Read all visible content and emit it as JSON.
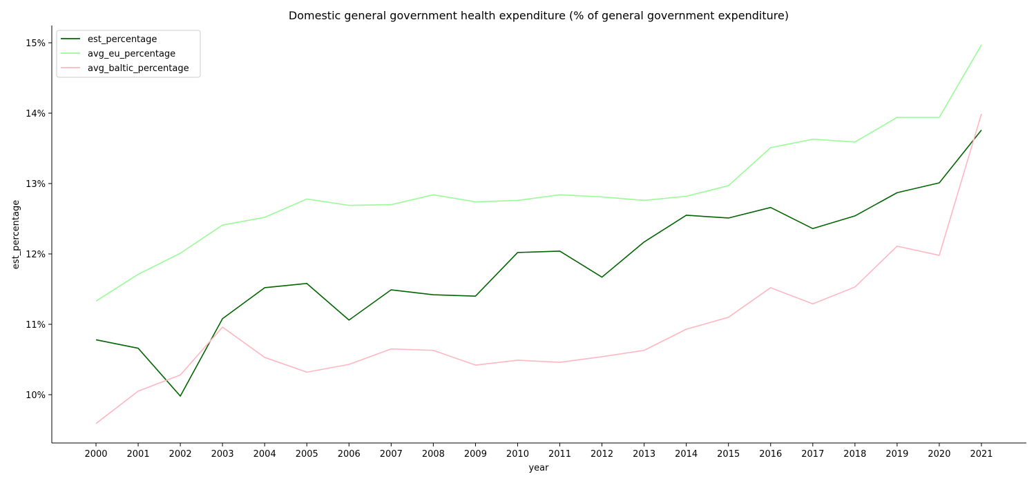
{
  "chart_data": {
    "type": "line",
    "title": "Domestic general government health expenditure (% of general government expenditure)",
    "xlabel": "year",
    "ylabel": "est_percentage",
    "x": [
      2000,
      2001,
      2002,
      2003,
      2004,
      2005,
      2006,
      2007,
      2008,
      2009,
      2010,
      2011,
      2012,
      2013,
      2014,
      2015,
      2016,
      2017,
      2018,
      2019,
      2020,
      2021
    ],
    "ylim": [
      9.3,
      15.25
    ],
    "y_ticks": [
      10,
      11,
      12,
      13,
      14,
      15
    ],
    "y_tick_suffix": "%",
    "grid": false,
    "legend_position": "top-left",
    "series": [
      {
        "name": "est_percentage",
        "color": "#006400",
        "values": [
          10.78,
          10.66,
          9.98,
          11.08,
          11.52,
          11.58,
          11.06,
          11.49,
          11.42,
          11.4,
          12.02,
          12.04,
          11.67,
          12.17,
          12.55,
          12.51,
          12.66,
          12.36,
          12.54,
          12.87,
          13.01,
          13.76
        ]
      },
      {
        "name": "avg_eu_percentage",
        "color": "#98FB98",
        "values": [
          11.33,
          11.71,
          12.01,
          12.41,
          12.52,
          12.78,
          12.69,
          12.7,
          12.84,
          12.74,
          12.76,
          12.84,
          12.81,
          12.76,
          12.82,
          12.97,
          13.51,
          13.63,
          13.59,
          13.94,
          13.94,
          14.97
        ]
      },
      {
        "name": "avg_baltic_percentage",
        "color": "#FFB6C1",
        "values": [
          9.59,
          10.05,
          10.28,
          10.96,
          10.53,
          10.32,
          10.43,
          10.65,
          10.63,
          10.42,
          10.49,
          10.46,
          10.54,
          10.63,
          10.93,
          11.1,
          11.52,
          11.29,
          11.53,
          12.11,
          11.98,
          13.99
        ]
      }
    ]
  }
}
